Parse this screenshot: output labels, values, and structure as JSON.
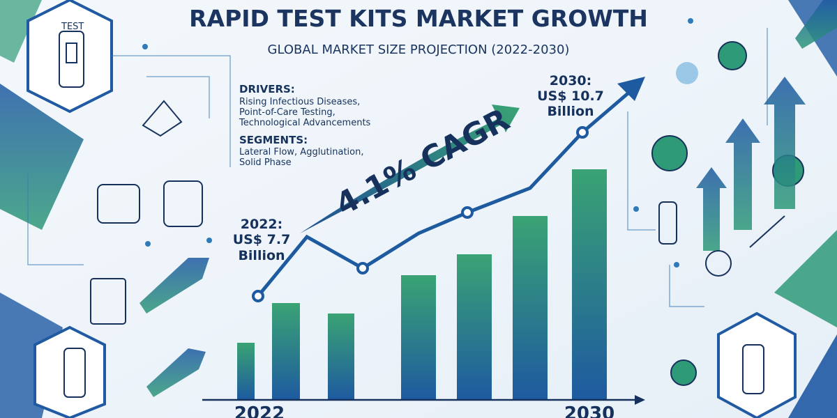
{
  "header": {
    "title": "RAPID TEST KITS MARKET GROWTH",
    "subtitle": "GLOBAL MARKET SIZE PROJECTION (2022-2030)"
  },
  "drivers": {
    "heading": "DRIVERS:",
    "lines": [
      "Rising Infectious Diseases,",
      "Point-of-Care Testing,",
      "Technological Advancements"
    ]
  },
  "segments": {
    "heading": "SEGMENTS:",
    "lines": [
      "Lateral Flow, Agglutination,",
      "Solid Phase"
    ]
  },
  "cagr": "4.1% CAGR",
  "start": {
    "year": "2022:",
    "value": "US$ 7.7",
    "unit": "Billion"
  },
  "end": {
    "year": "2030:",
    "value": "US$ 10.7",
    "unit": "Billion"
  },
  "axis": {
    "start": "2022",
    "end": "2030"
  },
  "icons": {
    "test_label": "TEST"
  }
}
